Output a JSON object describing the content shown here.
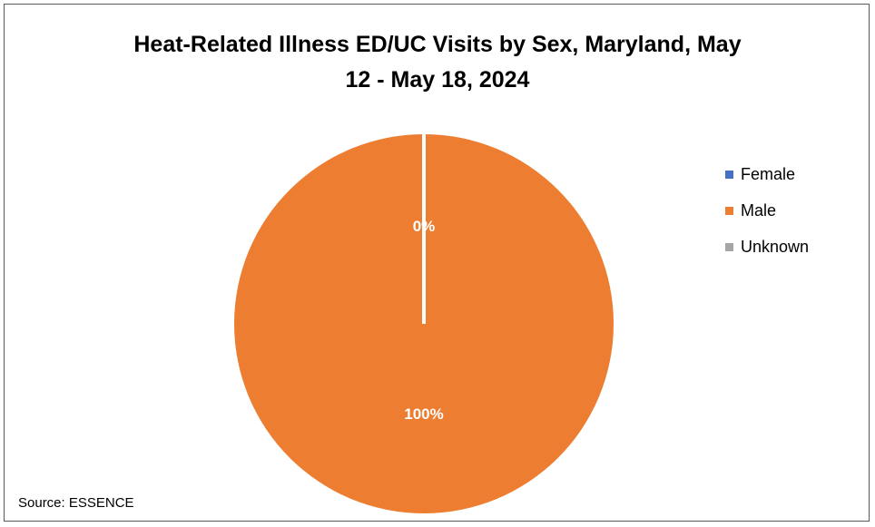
{
  "chart_data": {
    "type": "pie",
    "title_lines": [
      "Heat-Related Illness ED/UC Visits by Sex, Maryland, May",
      "12 - May 18, 2024"
    ],
    "slices": [
      {
        "name": "Female",
        "value": 0,
        "label": "",
        "color": "#4472C4"
      },
      {
        "name": "Male",
        "value": 100,
        "label": "100%",
        "color": "#ED7D31"
      },
      {
        "name": "Unknown",
        "value": 0,
        "label": "0%",
        "color": "#A5A5A5"
      }
    ],
    "legend": [
      "Female",
      "Male",
      "Unknown"
    ],
    "legend_position": "right",
    "source": "Source: ESSENCE"
  }
}
